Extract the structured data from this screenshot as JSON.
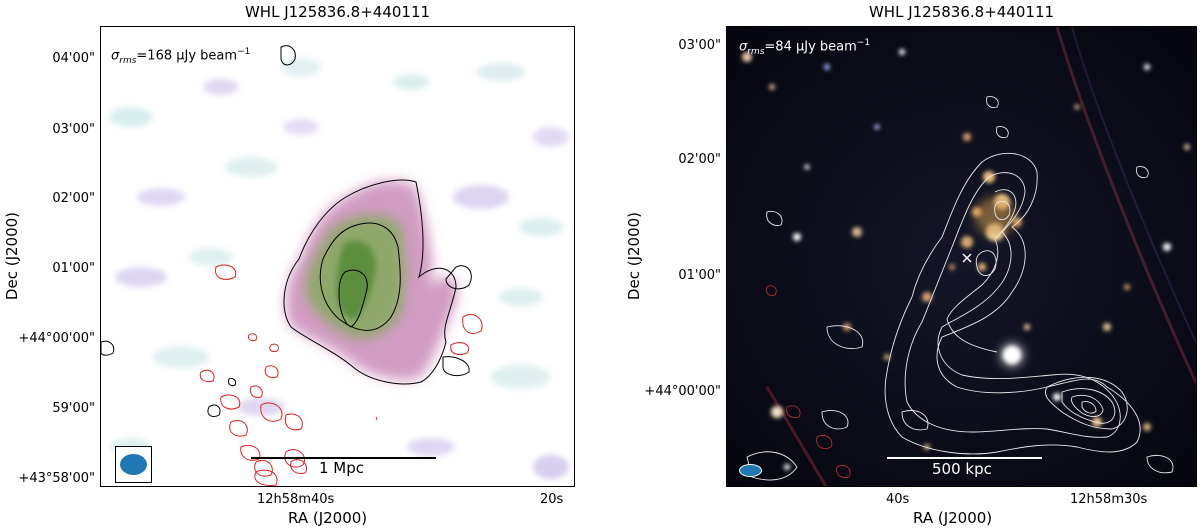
{
  "left_panel": {
    "title": "WHL J125836.8+440111",
    "rms_label": "σ",
    "rms_sub": "rms",
    "rms_value": "=168 μJy beam",
    "rms_exp": "−1",
    "scalebar_label": "1 Mpc",
    "y_ticks": [
      "04'00\"",
      "03'00\"",
      "02'00\"",
      "01'00\"",
      "+44°00'00\"",
      "59'00\"",
      "+43°58'00\""
    ],
    "x_ticks": [
      "12h58m40s",
      "20s"
    ],
    "xlabel": "RA (J2000)",
    "ylabel": "Dec (J2000)",
    "beam_color": "#1f77b4"
  },
  "right_panel": {
    "title": "WHL J125836.8+440111",
    "rms_label": "σ",
    "rms_sub": "rms",
    "rms_value": "=84 μJy beam",
    "rms_exp": "−1",
    "scalebar_label": "500 kpc",
    "y_ticks": [
      "03'00\"",
      "02'00\"",
      "01'00\"",
      "+44°00'00\""
    ],
    "x_ticks": [
      "40s",
      "12h58m30s"
    ],
    "xlabel": "RA (J2000)",
    "ylabel": "Dec (J2000)",
    "beam_color": "#1f77b4"
  }
}
